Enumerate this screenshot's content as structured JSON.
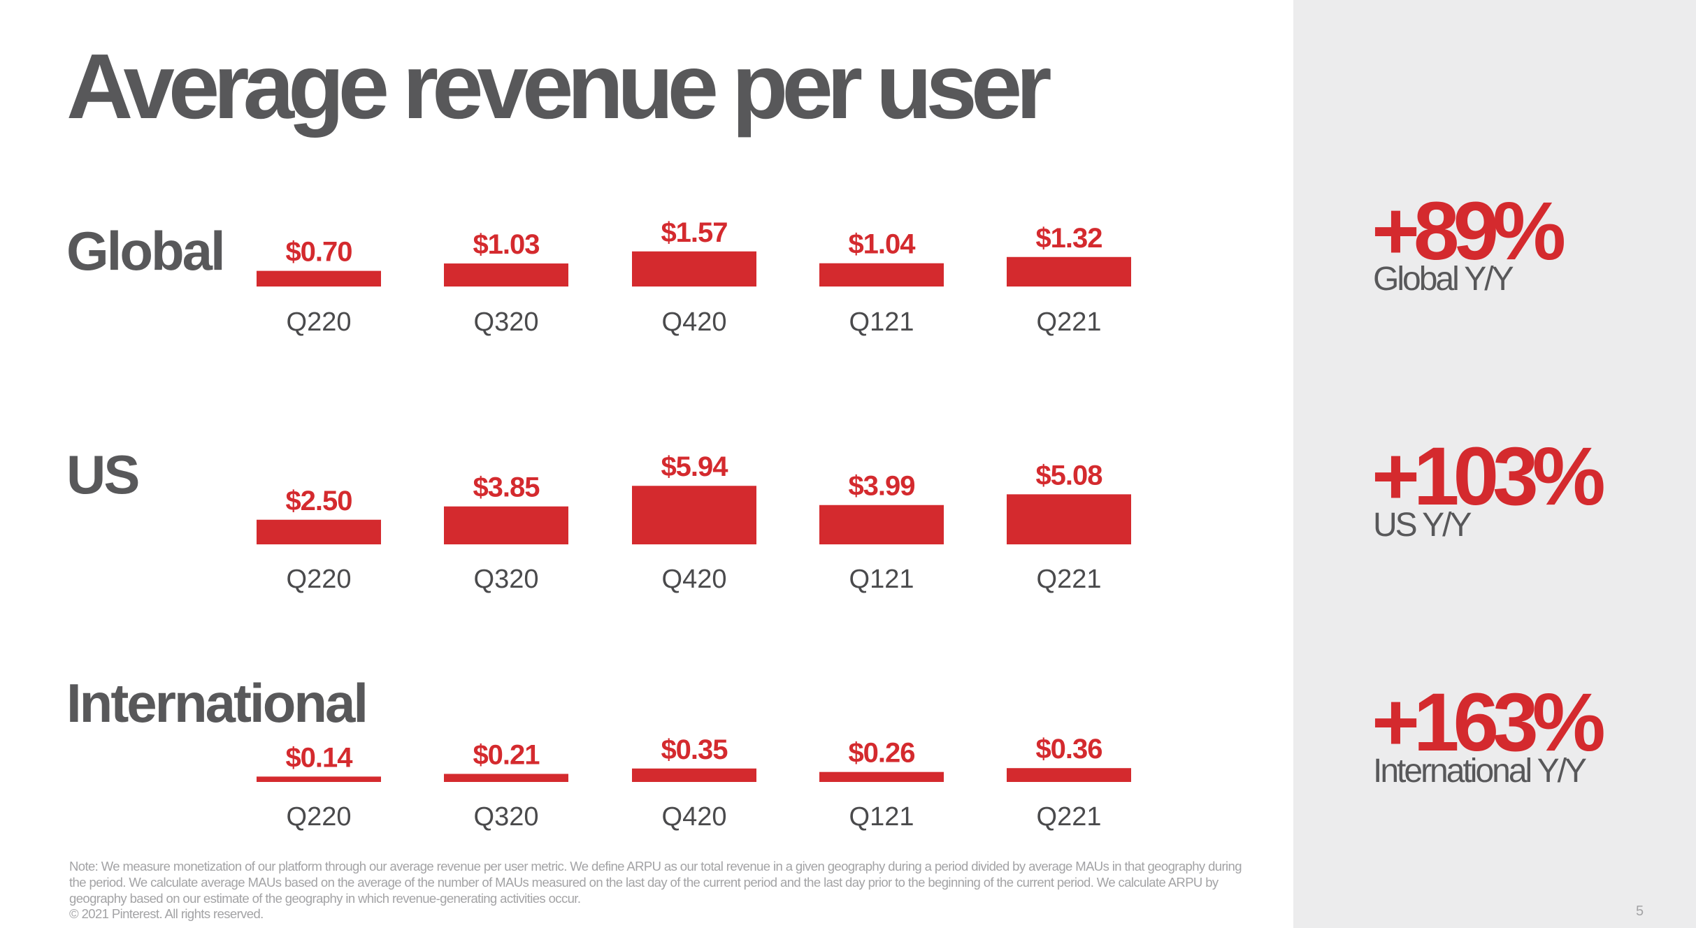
{
  "title": "Average revenue per user",
  "colors": {
    "bar": "#d42a2e",
    "text_dark": "#58585a",
    "sidebar_bg": "#ececed",
    "note": "#a3a3a5"
  },
  "sections": [
    {
      "label": "Global",
      "growth": "+89%",
      "growth_label": "Global Y/Y"
    },
    {
      "label": "US",
      "growth": "+103%",
      "growth_label": "US Y/Y"
    },
    {
      "label": "International",
      "growth": "+163%",
      "growth_label": "International Y/Y"
    }
  ],
  "chart_data": [
    {
      "type": "bar",
      "categories": [
        "Q220",
        "Q320",
        "Q420",
        "Q121",
        "Q221"
      ],
      "values": [
        0.7,
        1.03,
        1.57,
        1.04,
        1.32
      ],
      "data_labels": [
        "$0.70",
        "$1.03",
        "$1.57",
        "$1.04",
        "$1.32"
      ]
    },
    {
      "type": "bar",
      "categories": [
        "Q220",
        "Q320",
        "Q420",
        "Q121",
        "Q221"
      ],
      "values": [
        2.5,
        3.85,
        5.94,
        3.99,
        5.08
      ],
      "data_labels": [
        "$2.50",
        "$3.85",
        "$5.94",
        "$3.99",
        "$5.08"
      ]
    },
    {
      "type": "bar",
      "categories": [
        "Q220",
        "Q320",
        "Q420",
        "Q121",
        "Q221"
      ],
      "values": [
        0.14,
        0.21,
        0.35,
        0.26,
        0.36
      ],
      "data_labels": [
        "$0.14",
        "$0.21",
        "$0.35",
        "$0.26",
        "$0.36"
      ]
    }
  ],
  "footer": {
    "note": "Note: We measure monetization of our platform through our average revenue per user metric. We define ARPU as our total revenue in a given geography during a period divided by average MAUs in that geography during the period. We calculate average MAUs based on the average of the number of MAUs measured on the last day of the current period and the last day prior to the beginning of the current period. We calculate ARPU by geography based on our estimate of the geography in which revenue-generating activities occur.",
    "copyright": "© 2021 Pinterest. All rights reserved.",
    "page_number": "5"
  }
}
